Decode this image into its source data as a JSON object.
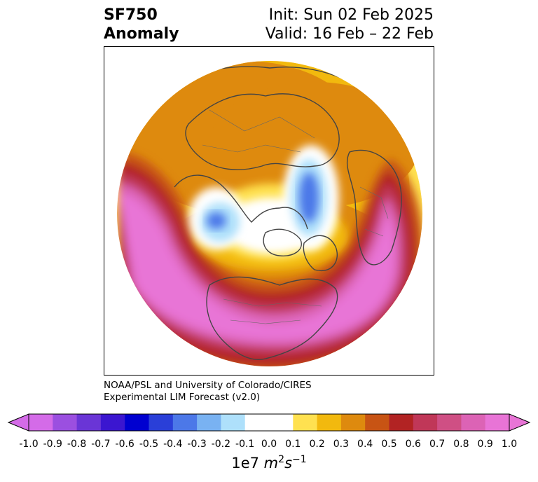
{
  "header": {
    "title_line1": "SF750",
    "title_line2": "Anomaly",
    "init": "Init: Sun 02 Feb 2025",
    "valid": "Valid: 16 Feb – 22 Feb"
  },
  "credit": {
    "line1": "NOAA/PSL and University of Colorado/CIRES",
    "line2": "Experimental LIM Forecast (v2.0)"
  },
  "colorbar": {
    "colors": [
      "#d46be8",
      "#9b4fe0",
      "#6a35d6",
      "#3b16d0",
      "#0000d0",
      "#2a3fd8",
      "#4c78e8",
      "#79b2f2",
      "#aee0fb",
      "#ffffff",
      "#ffffff",
      "#ffe150",
      "#f2b90e",
      "#de8a0e",
      "#c85414",
      "#b22323",
      "#c03758",
      "#cf4f84",
      "#dc63b5",
      "#e874d6"
    ],
    "extend_min": "#d46be8",
    "extend_max": "#e874d6",
    "ticks": [
      "-1.0",
      "-0.9",
      "-0.8",
      "-0.7",
      "-0.6",
      "-0.5",
      "-0.4",
      "-0.3",
      "-0.2",
      "-0.1",
      "0.0",
      "0.1",
      "0.2",
      "0.3",
      "0.4",
      "0.5",
      "0.6",
      "0.7",
      "0.8",
      "0.9",
      "1.0"
    ],
    "units_base": "1e7 ",
    "units_m": "m",
    "units_m_exp": "2",
    "units_s": "s",
    "units_s_exp": "−1"
  }
}
